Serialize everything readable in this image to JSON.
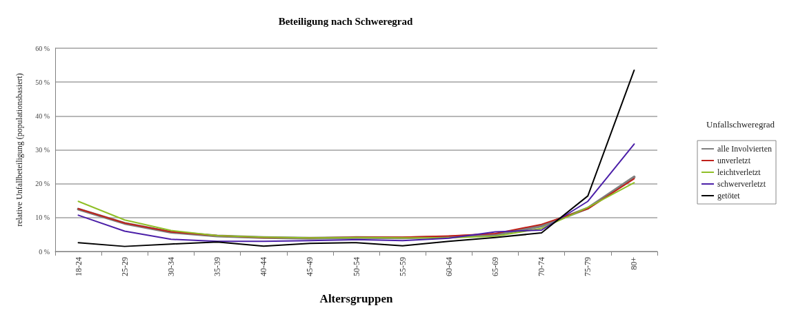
{
  "chart_data": {
    "type": "line",
    "title": "Beteiligung nach Schweregrad",
    "xlabel": "Altersgruppen",
    "ylabel": "relative Unfallbeteiligung (populationsbasiert)",
    "legend_title": "Unfallschweregrad",
    "categories": [
      "18-24",
      "25-29",
      "30-34",
      "35-39",
      "40-44",
      "45-49",
      "50-54",
      "55-59",
      "60-64",
      "65-69",
      "70-74",
      "75-79",
      "80+"
    ],
    "series": [
      {
        "name": "alle Involvierten",
        "color": "#7f7f7f",
        "values": [
          12.5,
          8.3,
          5.7,
          4.6,
          4.1,
          3.9,
          4.1,
          4.0,
          4.3,
          5.0,
          7.5,
          12.8,
          22
        ]
      },
      {
        "name": "unverletzt",
        "color": "#c0201a",
        "values": [
          12.6,
          8.4,
          5.8,
          4.7,
          4.1,
          4.0,
          4.2,
          4.2,
          4.6,
          5.3,
          8.0,
          12.6,
          21.5
        ]
      },
      {
        "name": "leichtverletzt",
        "color": "#8fbf26",
        "values": [
          14.8,
          9.3,
          6.2,
          4.7,
          4.2,
          4.0,
          4.1,
          4.0,
          4.0,
          4.5,
          6.8,
          13.0,
          20.3
        ]
      },
      {
        "name": "schwerverletzt",
        "color": "#4b1fa8",
        "values": [
          10.7,
          6.0,
          3.6,
          3.0,
          3.0,
          3.2,
          3.5,
          3.2,
          3.9,
          5.8,
          6.3,
          14.8,
          31.7
        ]
      },
      {
        "name": "getötet",
        "color": "#000000",
        "values": [
          2.6,
          1.5,
          2.2,
          2.8,
          1.6,
          2.4,
          2.6,
          1.7,
          3.0,
          4.1,
          5.5,
          16.4,
          53.5
        ]
      }
    ],
    "ylim": [
      0,
      60
    ],
    "yticks": [
      {
        "value": 0,
        "label": "0 %"
      },
      {
        "value": 10,
        "label": "10 %"
      },
      {
        "value": 20,
        "label": "20 %"
      },
      {
        "value": 30,
        "label": "30 %"
      },
      {
        "value": 40,
        "label": "40 %"
      },
      {
        "value": 50,
        "label": "50 %"
      },
      {
        "value": 60,
        "label": "60 %"
      }
    ],
    "grid": "y",
    "legend": "right",
    "marker": "none",
    "line_style": "solid"
  }
}
